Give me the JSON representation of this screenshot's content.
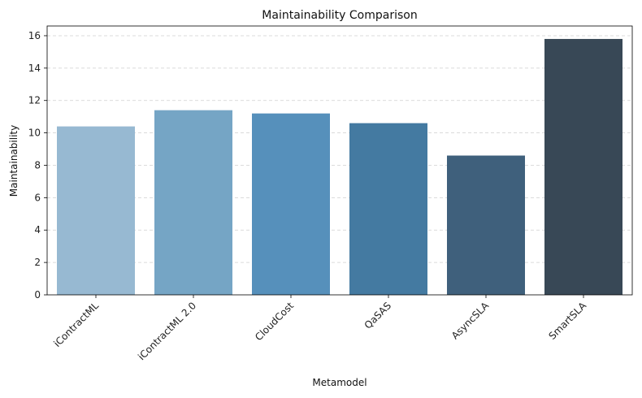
{
  "chart_data": {
    "type": "bar",
    "title": "Maintainability Comparison",
    "xlabel": "Metamodel",
    "ylabel": "Maintainability",
    "categories": [
      "iContractML",
      "iContractML 2.0",
      "CloudCost",
      "QaSAS",
      "AsyncSLA",
      "SmartSLA"
    ],
    "values": [
      10.4,
      11.4,
      11.2,
      10.6,
      8.6,
      15.8
    ],
    "colors": [
      "#97b9d2",
      "#75a5c5",
      "#5690bb",
      "#447aa1",
      "#3f607c",
      "#384856"
    ],
    "ylim": [
      0,
      16.6
    ],
    "yticks": [
      0,
      2,
      4,
      6,
      8,
      10,
      12,
      14,
      16
    ],
    "grid": "y-dashed",
    "legend": "none"
  }
}
